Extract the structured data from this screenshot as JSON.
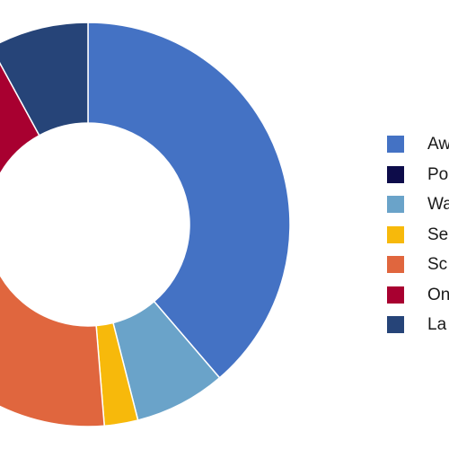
{
  "chart_data": {
    "type": "pie",
    "donut": true,
    "title": "",
    "legend_position": "right",
    "categories": [
      "Aw",
      "Po",
      "Wa",
      "Se",
      "Sc",
      "On",
      "La"
    ],
    "series": [
      {
        "values": [
          36.0,
          0.0,
          6.8,
          2.5,
          23.0,
          17.3,
          7.4
        ],
        "colors": [
          "#4472c4",
          "#0d0c4a",
          "#6aa3c9",
          "#f7b90b",
          "#e0663e",
          "#a80030",
          "#264478"
        ]
      }
    ],
    "legend": [
      {
        "label": "Aw",
        "color": "#4472c4"
      },
      {
        "label": "Po",
        "color": "#0d0c4a"
      },
      {
        "label": "Wa",
        "color": "#6aa3c9"
      },
      {
        "label": "Se",
        "color": "#f7b90b"
      },
      {
        "label": "Sc",
        "color": "#e0663e"
      },
      {
        "label": "On",
        "color": "#a80030"
      },
      {
        "label": "La",
        "color": "#264478"
      }
    ]
  }
}
